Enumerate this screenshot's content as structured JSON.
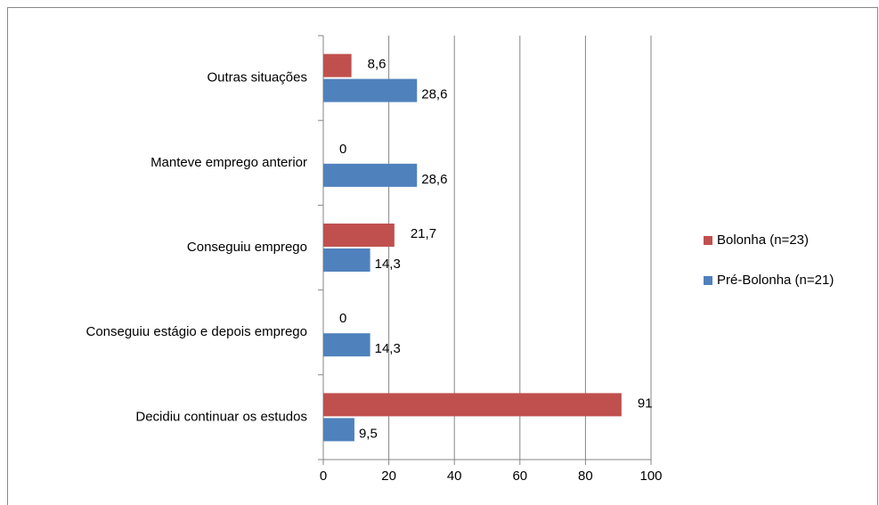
{
  "chart_data": {
    "type": "bar",
    "orientation": "horizontal",
    "categories": [
      "Outras situações",
      "Manteve emprego anterior",
      "Conseguiu emprego",
      "Conseguiu estágio e depois emprego",
      "Decidiu continuar os estudos"
    ],
    "series": [
      {
        "name": "Bolonha (n=23)",
        "color": "#c0504d",
        "values": [
          8.6,
          0,
          21.7,
          0,
          91
        ],
        "value_labels": [
          "8,6",
          "0",
          "21,7",
          "0",
          "91"
        ]
      },
      {
        "name": "Pré-Bolonha (n=21)",
        "color": "#4f81bd",
        "values": [
          28.6,
          28.6,
          14.3,
          14.3,
          9.5
        ],
        "value_labels": [
          "28,6",
          "28,6",
          "14,3",
          "14,3",
          "9,5"
        ]
      }
    ],
    "xlim": [
      0,
      100
    ],
    "xticks": [
      0,
      20,
      40,
      60,
      80,
      100
    ],
    "grid": true,
    "legend": "right"
  }
}
